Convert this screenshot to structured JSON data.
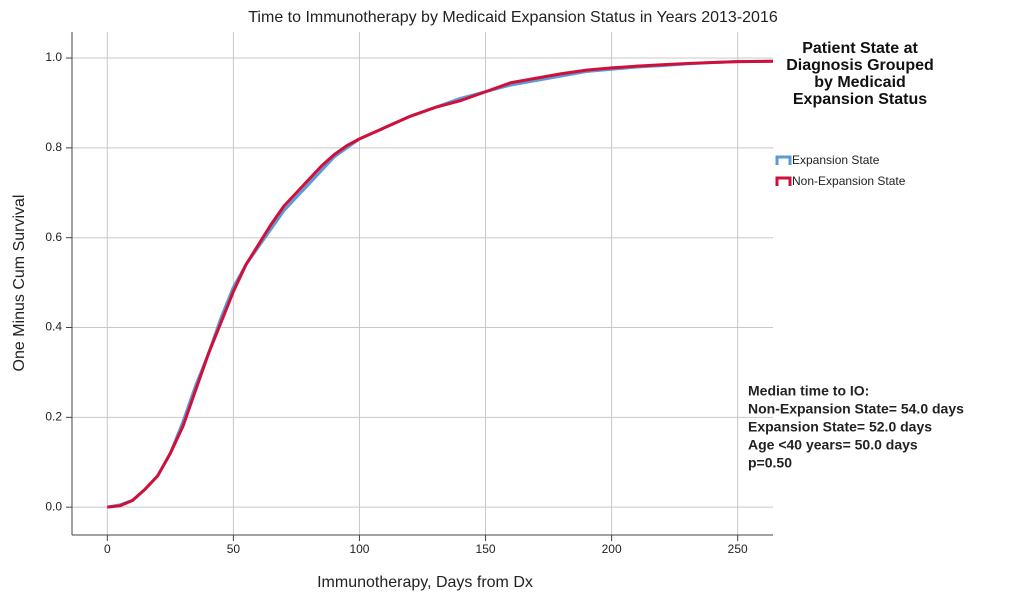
{
  "chart_data": {
    "type": "line",
    "title": "Time to Immunotherapy by Medicaid Expansion Status in Years 2013-2016",
    "x_label": "Immunotherapy, Days from Dx",
    "y_label": "One Minus Cum Survival",
    "x": [
      0,
      5,
      10,
      15,
      20,
      25,
      30,
      35,
      40,
      45,
      50,
      55,
      60,
      65,
      70,
      75,
      80,
      85,
      90,
      95,
      100,
      110,
      120,
      130,
      140,
      150,
      160,
      170,
      180,
      190,
      200,
      210,
      220,
      230,
      240,
      250,
      264
    ],
    "series": [
      {
        "name": "Expansion State",
        "color": "#5b9bd8",
        "values": [
          0,
          0.005,
          0.015,
          0.04,
          0.07,
          0.12,
          0.19,
          0.27,
          0.34,
          0.42,
          0.49,
          0.54,
          0.58,
          0.62,
          0.66,
          0.69,
          0.72,
          0.75,
          0.78,
          0.8,
          0.82,
          0.845,
          0.87,
          0.89,
          0.91,
          0.925,
          0.94,
          0.95,
          0.96,
          0.97,
          0.975,
          0.98,
          0.983,
          0.987,
          0.99,
          0.992,
          0.993
        ]
      },
      {
        "name": "Non-Expansion State",
        "color": "#d0103a",
        "values": [
          0,
          0.003,
          0.015,
          0.04,
          0.07,
          0.12,
          0.18,
          0.26,
          0.34,
          0.41,
          0.48,
          0.54,
          0.585,
          0.63,
          0.67,
          0.7,
          0.73,
          0.76,
          0.785,
          0.805,
          0.82,
          0.845,
          0.87,
          0.89,
          0.905,
          0.925,
          0.945,
          0.955,
          0.965,
          0.973,
          0.978,
          0.982,
          0.985,
          0.988,
          0.99,
          0.992,
          0.993
        ]
      }
    ],
    "legend_title": "Patient State at Diagnosis Grouped by Medicaid Expansion Status",
    "legend_position": "right",
    "annotations": [
      "Median time to IO:",
      "Non-Expansion State= 54.0 days",
      "Expansion State= 52.0 days",
      "Age <40 years= 50.0 days",
      "p=0.50"
    ],
    "xlim": [
      -14,
      264
    ],
    "xticks": [
      0,
      50,
      100,
      150,
      200,
      250
    ],
    "ylim": [
      -0.062,
      1.058
    ],
    "yticks": [
      {
        "value": 0,
        "label": "0.0"
      },
      0.2,
      0.4,
      0.6,
      0.8,
      {
        "value": 1,
        "label": "1.0"
      }
    ],
    "grid": true
  }
}
